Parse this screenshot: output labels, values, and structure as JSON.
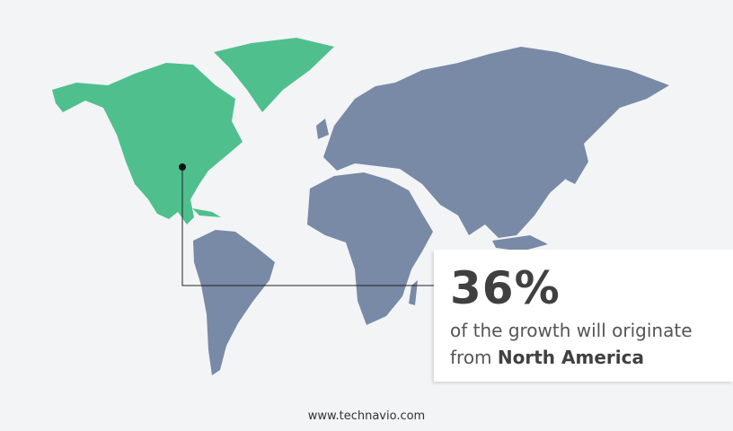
{
  "colors": {
    "highlight": "#4fc08d",
    "land": "#788aa6",
    "background": "#f3f4f6",
    "text": "#404040"
  },
  "highlight_region": "North America",
  "callout": {
    "percent": "36%",
    "line1": "of the growth will originate",
    "line2_prefix": "from",
    "region": "North America"
  },
  "footer": "www.technavio.com"
}
